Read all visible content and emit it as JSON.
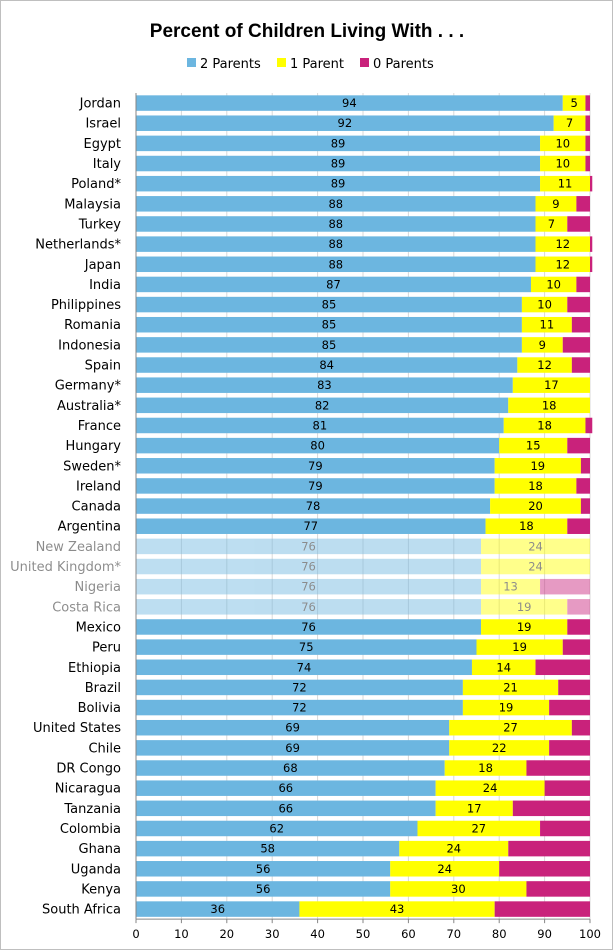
{
  "chart_data": {
    "type": "bar",
    "orientation": "horizontal",
    "stacked": true,
    "title": "Percent of Children Living With . . .",
    "xlabel": "",
    "ylabel": "",
    "xlim": [
      0,
      100
    ],
    "xticks": [
      0,
      10,
      20,
      30,
      40,
      50,
      60,
      70,
      80,
      90,
      100
    ],
    "grid": true,
    "legend_position": "top",
    "categories": [
      "Jordan",
      "Israel",
      "Egypt",
      "Italy",
      "Poland*",
      "Malaysia",
      "Turkey",
      "Netherlands*",
      "Japan",
      "India",
      "Philippines",
      "Romania",
      "Indonesia",
      "Spain",
      "Germany*",
      "Australia*",
      "France",
      "Hungary",
      "Sweden*",
      "Ireland",
      "Canada",
      "Argentina",
      "New Zealand",
      "United Kingdom*",
      "Nigeria",
      "Costa Rica",
      "Mexico",
      "Peru",
      "Ethiopia",
      "Brazil",
      "Bolivia",
      "United States",
      "Chile",
      "DR Congo",
      "Nicaragua",
      "Tanzania",
      "Colombia",
      "Ghana",
      "Uganda",
      "Kenya",
      "South Africa"
    ],
    "faded_categories": [
      "New Zealand",
      "United Kingdom*",
      "Nigeria",
      "Costa Rica"
    ],
    "series": [
      {
        "name": "2 Parents",
        "color": "#6cb6e0",
        "values": [
          94,
          92,
          89,
          89,
          89,
          88,
          88,
          88,
          88,
          87,
          85,
          85,
          85,
          84,
          83,
          82,
          81,
          80,
          79,
          79,
          78,
          77,
          76,
          76,
          76,
          76,
          76,
          75,
          74,
          72,
          72,
          69,
          69,
          68,
          66,
          66,
          62,
          58,
          56,
          56,
          36
        ]
      },
      {
        "name": "1 Parent",
        "color": "#ffff00",
        "values": [
          5,
          7,
          10,
          10,
          11,
          9,
          7,
          12,
          12,
          10,
          10,
          11,
          9,
          12,
          17,
          18,
          18,
          15,
          19,
          18,
          20,
          18,
          24,
          24,
          13,
          19,
          19,
          19,
          14,
          21,
          19,
          27,
          22,
          18,
          24,
          17,
          27,
          24,
          24,
          30,
          43
        ]
      },
      {
        "name": "0 Parents",
        "color": "#c9227b",
        "values": [
          1,
          1,
          1,
          1,
          0.5,
          3,
          5,
          0.5,
          0.5,
          3,
          5,
          4,
          6,
          4,
          0,
          0,
          1.5,
          5,
          2,
          3,
          2,
          5,
          0,
          0,
          11,
          5,
          5,
          6,
          12,
          7,
          9,
          4,
          9,
          14,
          10,
          17,
          11,
          18,
          20,
          14,
          21
        ]
      }
    ]
  }
}
